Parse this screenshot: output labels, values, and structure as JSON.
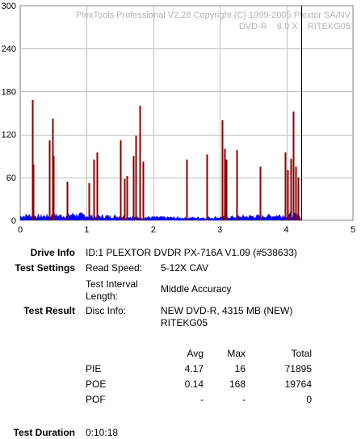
{
  "chart_data": {
    "type": "bar",
    "title": "PlexTools Professional V2.28 Copyright (C) 1999-2005 Plextor SA/NV",
    "subtitle": "DVD-R    8.0 X    RITEKG05",
    "xlim": [
      0,
      5
    ],
    "ylim": [
      0,
      300
    ],
    "x_ticks": [
      0,
      1,
      2,
      3,
      4,
      5
    ],
    "y_ticks": [
      0,
      60,
      120,
      180,
      240,
      300
    ],
    "grid": true,
    "disc_end_x": 4.22,
    "colors": {
      "pie": "#0000ff",
      "poe": "#8b0000",
      "grid": "#c0c0c0",
      "end_marker": "#000000"
    },
    "series": [
      {
        "values": [
          [
            0.18,
            168
          ],
          [
            0.2,
            78
          ],
          [
            0.44,
            112
          ],
          [
            0.48,
            142
          ],
          [
            0.5,
            90
          ],
          [
            0.7,
            54
          ],
          [
            1.03,
            52
          ],
          [
            1.1,
            85
          ],
          [
            1.15,
            95
          ],
          [
            1.5,
            112
          ],
          [
            1.56,
            58
          ],
          [
            1.6,
            62
          ],
          [
            1.7,
            90
          ],
          [
            1.74,
            118
          ],
          [
            1.8,
            160
          ],
          [
            1.84,
            82
          ],
          [
            2.5,
            85
          ],
          [
            2.8,
            92
          ],
          [
            3.04,
            140
          ],
          [
            3.07,
            100
          ],
          [
            3.1,
            85
          ],
          [
            3.25,
            98
          ],
          [
            3.6,
            75
          ],
          [
            3.98,
            95
          ],
          [
            4.02,
            70
          ],
          [
            4.06,
            86
          ],
          [
            4.1,
            152
          ],
          [
            4.14,
            75
          ],
          [
            4.18,
            60
          ]
        ]
      }
    ],
    "pie_profile": [
      [
        0.0,
        8
      ],
      [
        0.1,
        10
      ],
      [
        0.3,
        8
      ],
      [
        0.5,
        10
      ],
      [
        0.7,
        9
      ],
      [
        0.8,
        12
      ],
      [
        1.0,
        9
      ],
      [
        1.2,
        8
      ],
      [
        1.5,
        8
      ],
      [
        1.8,
        6
      ],
      [
        2.0,
        6
      ],
      [
        2.5,
        5
      ],
      [
        3.0,
        6
      ],
      [
        3.5,
        8
      ],
      [
        3.8,
        9
      ],
      [
        4.0,
        10
      ],
      [
        4.1,
        11
      ],
      [
        4.2,
        8
      ]
    ]
  },
  "info": {
    "drive_info_label": "Drive Info",
    "drive_info_value": "ID:1 PLEXTOR DVDR PX-716A V1.09 (#538633)",
    "test_settings_label": "Test Settings",
    "read_speed_label": "Read Speed:",
    "read_speed_value": "5-12X CAV",
    "interval_label_1": "Test Interval",
    "interval_label_2": "Length:",
    "interval_value": "Middle Accuracy",
    "test_result_label": "Test Result",
    "disc_info_label": "Disc Info:",
    "disc_info_value_1": "NEW DVD-R, 4315 MB (NEW)",
    "disc_info_value_2": "RITEKG05",
    "col_avg": "Avg",
    "col_max": "Max",
    "col_total": "Total",
    "rows": [
      {
        "name": "PIE",
        "avg": "4.17",
        "max": "16",
        "total": "71895"
      },
      {
        "name": "POE",
        "avg": "0.14",
        "max": "168",
        "total": "19764"
      },
      {
        "name": "POF",
        "avg": "-",
        "max": "-",
        "total": "0"
      }
    ],
    "duration_label": "Test Duration",
    "duration_value": "0:10:18"
  }
}
